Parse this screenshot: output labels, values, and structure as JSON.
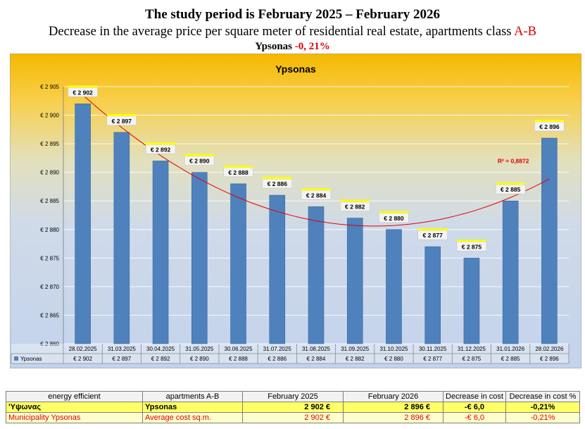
{
  "header": {
    "line1": "The study period is February  2025 – February  2026",
    "line2_prefix": "Decrease in the average price per square meter of residential real estate, apartments class ",
    "line2_class": "A-B",
    "line3_name": "Ypsonas ",
    "line3_value": "-0, 21%"
  },
  "chart_data": {
    "type": "bar",
    "title": "Ypsonas",
    "categories": [
      "28.02.2025",
      "31.03.2025",
      "30.04.2025",
      "31.05.2025",
      "30.06.2025",
      "31.07.2025",
      "31.08.2025",
      "31.09.2025",
      "31.10.2025",
      "30.11.2025",
      "31.12.2025",
      "31.01.2026",
      "28.02.2026"
    ],
    "series": [
      {
        "name": "Ypsonas",
        "values": [
          2902,
          2897,
          2892,
          2890,
          2888,
          2886,
          2884,
          2882,
          2880,
          2877,
          2875,
          2885,
          2896
        ]
      }
    ],
    "data_labels": [
      "€ 2 902",
      "€ 2 897",
      "€ 2 892",
      "€ 2 890",
      "€ 2 888",
      "€ 2 886",
      "€ 2 884",
      "€ 2 882",
      "€ 2 880",
      "€ 2 877",
      "€ 2 875",
      "€ 2 885",
      "€ 2 896"
    ],
    "table_values": [
      "€ 2 902",
      "€ 2 897",
      "€ 2 892",
      "€ 2 890",
      "€ 2 888",
      "€ 2 886",
      "€ 2 884",
      "€ 2 882",
      "€ 2 880",
      "€ 2 877",
      "€ 2 875",
      "€ 2 885",
      "€ 2 896"
    ],
    "ylim": [
      2860,
      2905
    ],
    "yticks": [
      2860,
      2865,
      2870,
      2875,
      2880,
      2885,
      2890,
      2895,
      2900,
      2905
    ],
    "ytick_labels": [
      "€ 2 860",
      "€ 2 865",
      "€ 2 870",
      "€ 2 875",
      "€ 2 880",
      "€ 2 885",
      "€ 2 890",
      "€ 2 895",
      "€ 2 900",
      "€ 2 905"
    ],
    "trendline": {
      "type": "polynomial",
      "label": "R² = 0,8872",
      "color": "#e00000"
    },
    "grid": true,
    "legend": "bottom-left (data table)",
    "colors": {
      "bar": "#4f81bd",
      "bg_top": "#f5b800",
      "bg_bottom": "#c5d5ec"
    }
  },
  "table": {
    "headers": [
      "energy efficient",
      "apartments A-B",
      "February 2025",
      "February 2026",
      "Decrease in cost",
      "Decrease in cost %"
    ],
    "rows": [
      [
        "'Υψωνας",
        "Ypsonas",
        "2 902 €",
        "2 896 €",
        "-€ 6,0",
        "-0,21%"
      ],
      [
        "Municipality Ypsonas",
        "Average cost sq.m.",
        "2 902 €",
        "2 896 €",
        "-€ 6,0",
        "-0,21%"
      ]
    ]
  }
}
